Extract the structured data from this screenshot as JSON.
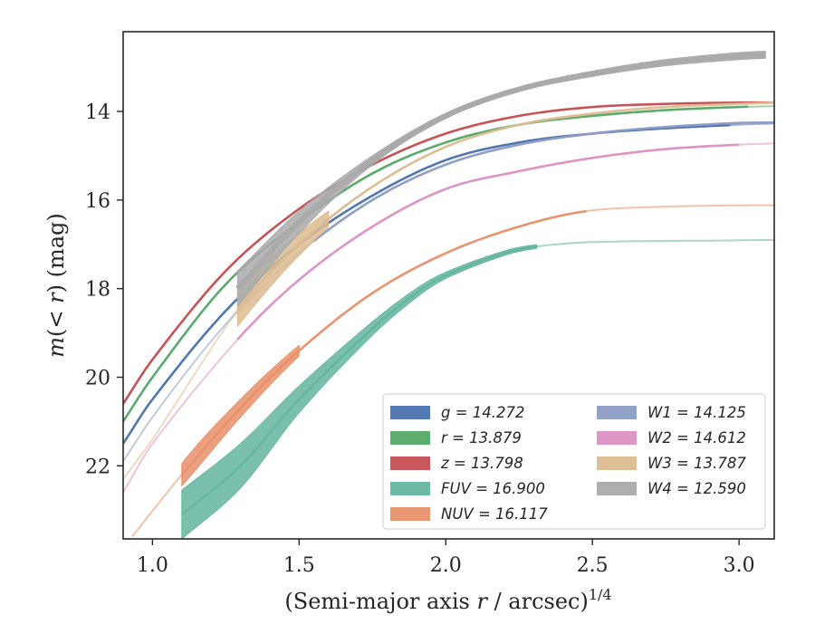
{
  "chart_data": {
    "type": "line",
    "xlabel": "(Semi-major axis r / arcsec)",
    "xlabel_italic_var": "r",
    "xlabel_exponent": "1/4",
    "ylabel": "m(< r) (mag)",
    "xlim": [
      0.9,
      3.12
    ],
    "ylim": [
      23.65,
      12.2
    ],
    "y_inverted": true,
    "xticks": [
      1.0,
      1.5,
      2.0,
      2.5,
      3.0
    ],
    "xtick_labels": [
      "1.0",
      "1.5",
      "2.0",
      "2.5",
      "3.0"
    ],
    "yticks": [
      14,
      16,
      18,
      20,
      22
    ],
    "ytick_labels": [
      "14",
      "16",
      "18",
      "20",
      "22"
    ],
    "grid": false,
    "legend": {
      "placement": "lower-right",
      "columns": 2
    },
    "series": [
      {
        "name": "g = 14.272",
        "color": "#4c72b0",
        "m_tot": 14.272,
        "x_bright": [
          0.9,
          2.97
        ],
        "x_faint": [
          0.9,
          3.12
        ],
        "x_band": [
          1.3,
          2.0
        ],
        "band_width": 0.06,
        "x": [
          0.9,
          1.0,
          1.25,
          1.5,
          1.75,
          2.0,
          2.25,
          2.5,
          2.75,
          3.0,
          3.12
        ],
        "y": [
          21.5,
          20.5,
          18.5,
          17.0,
          15.9,
          15.1,
          14.7,
          14.5,
          14.38,
          14.3,
          14.27
        ]
      },
      {
        "name": "r = 13.879",
        "color": "#55a868",
        "m_tot": 13.879,
        "x_bright": [
          0.9,
          3.03
        ],
        "x_faint": [
          0.9,
          3.12
        ],
        "x_band": [
          1.25,
          1.7
        ],
        "band_width": 0.06,
        "x": [
          0.9,
          1.0,
          1.25,
          1.5,
          1.75,
          2.0,
          2.25,
          2.5,
          2.75,
          3.0,
          3.12
        ],
        "y": [
          21.0,
          20.0,
          17.9,
          16.5,
          15.4,
          14.7,
          14.3,
          14.1,
          13.97,
          13.9,
          13.88
        ]
      },
      {
        "name": "z = 13.798",
        "color": "#c44e52",
        "m_tot": 13.798,
        "x_bright": [
          0.9,
          3.12
        ],
        "x_faint": [
          0.9,
          3.12
        ],
        "x_band": [
          0.9,
          0.9
        ],
        "band_width": 0.0,
        "x": [
          0.9,
          1.0,
          1.25,
          1.5,
          1.75,
          2.0,
          2.25,
          2.5,
          2.75,
          3.0,
          3.12
        ],
        "y": [
          20.6,
          19.6,
          17.6,
          16.2,
          15.2,
          14.5,
          14.1,
          13.9,
          13.83,
          13.8,
          13.8
        ]
      },
      {
        "name": "FUV = 16.900",
        "color": "#64b5a0",
        "m_tot": 16.9,
        "x_bright": [
          1.1,
          2.31
        ],
        "x_faint": [
          1.1,
          3.12
        ],
        "x_band": [
          1.1,
          2.31
        ],
        "x": [
          1.1,
          1.3,
          1.5,
          1.75,
          1.9,
          2.0,
          2.2,
          2.31,
          2.5,
          3.0,
          3.12
        ],
        "y": [
          23.1,
          22.0,
          20.5,
          18.9,
          18.1,
          17.7,
          17.2,
          17.05,
          16.95,
          16.91,
          16.9
        ],
        "band_half": [
          0.55,
          0.5,
          0.3,
          0.15,
          0.1,
          0.07,
          0.05,
          0.04,
          0.0,
          0.0,
          0.0
        ]
      },
      {
        "name": "NUV = 16.117",
        "color": "#e8906a",
        "m_tot": 16.117,
        "x_bright": [
          1.1,
          2.48
        ],
        "x_faint": [
          0.93,
          3.12
        ],
        "x_band": [
          1.1,
          1.5
        ],
        "x": [
          0.93,
          1.1,
          1.3,
          1.5,
          1.75,
          2.0,
          2.25,
          2.48,
          2.75,
          3.0,
          3.12
        ],
        "y": [
          23.6,
          22.2,
          20.7,
          19.4,
          18.1,
          17.2,
          16.6,
          16.25,
          16.15,
          16.12,
          16.117
        ],
        "band_half": [
          0.0,
          0.25,
          0.2,
          0.12,
          0.05,
          0.03,
          0.02,
          0.0,
          0.0,
          0.0,
          0.0
        ]
      },
      {
        "name": "W1 = 14.125",
        "color": "#8c9cc4",
        "m_tot": 14.125,
        "x_bright": [
          1.55,
          3.12
        ],
        "x_faint": [
          0.9,
          3.12
        ],
        "x_band": [
          0.9,
          0.9
        ],
        "band_width": 0.0,
        "x": [
          0.9,
          1.0,
          1.25,
          1.5,
          1.75,
          2.0,
          2.25,
          2.5,
          2.75,
          3.0,
          3.12
        ],
        "y": [
          21.9,
          20.9,
          18.8,
          17.2,
          16.0,
          15.2,
          14.75,
          14.5,
          14.35,
          14.26,
          14.25
        ]
      },
      {
        "name": "W2 = 14.612",
        "color": "#dc90c4",
        "m_tot": 14.612,
        "x_bright": [
          1.29,
          3.0
        ],
        "x_faint": [
          0.9,
          3.12
        ],
        "x_band": [
          0.9,
          0.9
        ],
        "band_width": 0.0,
        "x": [
          0.9,
          1.0,
          1.29,
          1.5,
          1.75,
          2.0,
          2.25,
          2.5,
          2.75,
          3.0,
          3.12
        ],
        "y": [
          22.6,
          21.5,
          19.15,
          17.8,
          16.6,
          15.75,
          15.35,
          15.05,
          14.85,
          14.75,
          14.72
        ]
      },
      {
        "name": "W3 = 13.787",
        "color": "#dcbc90",
        "m_tot": 13.787,
        "x_bright": [
          1.29,
          3.12
        ],
        "x_faint": [
          0.9,
          3.12
        ],
        "x_band": [
          1.29,
          1.6
        ],
        "x": [
          0.9,
          1.0,
          1.29,
          1.5,
          1.75,
          2.0,
          2.25,
          2.5,
          2.75,
          3.0,
          3.12
        ],
        "y": [
          22.3,
          21.4,
          18.5,
          17.0,
          15.7,
          14.8,
          14.3,
          14.05,
          13.9,
          13.83,
          13.8
        ],
        "band_half": [
          0.0,
          0.0,
          0.35,
          0.25,
          0.08,
          0.04,
          0.02,
          0.0,
          0.0,
          0.0,
          0.0
        ]
      },
      {
        "name": "W4 = 12.590",
        "color": "#aaaaaa",
        "m_tot": 12.59,
        "x_bright": [
          1.29,
          3.09
        ],
        "x_faint": [
          1.29,
          3.09
        ],
        "x_band": [
          1.29,
          3.09
        ],
        "x": [
          1.29,
          1.5,
          1.75,
          2.0,
          2.25,
          2.5,
          2.75,
          3.0,
          3.09
        ],
        "y": [
          18.0,
          16.5,
          15.1,
          14.1,
          13.5,
          13.15,
          12.9,
          12.75,
          12.72
        ],
        "band_half": [
          0.4,
          0.25,
          0.1,
          0.06,
          0.05,
          0.06,
          0.07,
          0.08,
          0.08
        ]
      }
    ]
  }
}
